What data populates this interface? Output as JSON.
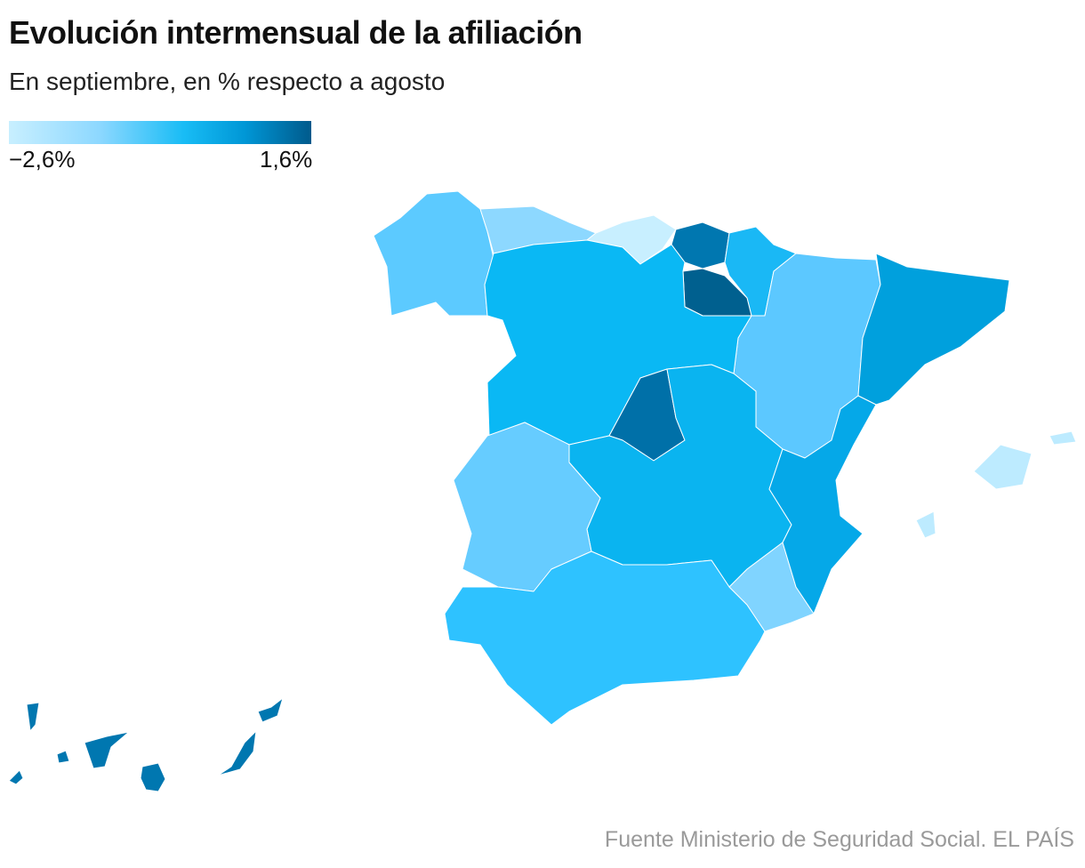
{
  "title": "Evolución intermensual de la afiliación",
  "subtitle": "En septiembre, en % respecto a agosto",
  "legend": {
    "min_label": "−2,6%",
    "max_label": "1,6%",
    "min_color": "#c8efff",
    "mid_color": "#18bcf5",
    "max_color": "#005a8c"
  },
  "regions": {
    "galicia": "#5ccaff",
    "asturias": "#8dd8ff",
    "cantabria": "#c8efff",
    "pais_vasco": "#0077b0",
    "navarra": "#1ab8f5",
    "la_rioja": "#00608f",
    "aragon": "#5cc8ff",
    "cataluna": "#00a0dd",
    "castilla_y_leon": "#0ab8f4",
    "madrid": "#0070a8",
    "castilla_la_mancha": "#0ab4f0",
    "extremadura": "#66ccff",
    "andalucia": "#2ec2ff",
    "murcia": "#80d4ff",
    "comunidad_valenciana": "#05a8e8",
    "baleares": "#bdebff",
    "canarias": "#0077b0"
  },
  "source": "Fuente Ministerio de Seguridad Social. EL PAÍS"
}
